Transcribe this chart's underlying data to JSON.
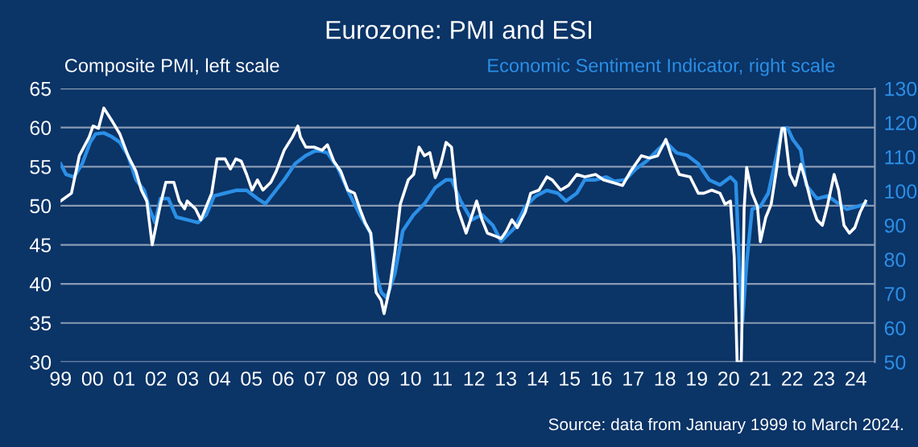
{
  "chart_data": {
    "type": "line",
    "title": "Eurozone: PMI and ESI",
    "ylabel": "Composite PMI, left scale",
    "y2label": "Economic Sentiment Indicator, right scale",
    "annotations": [
      "Source: data from January 1999 to March 2024."
    ],
    "xlim": [
      1999,
      2024.6
    ],
    "xticks": [
      {
        "value": 1999,
        "label": "99"
      },
      {
        "value": 2000,
        "label": "00"
      },
      {
        "value": 2001,
        "label": "01"
      },
      {
        "value": 2002,
        "label": "02"
      },
      {
        "value": 2003,
        "label": "03"
      },
      {
        "value": 2004,
        "label": "04"
      },
      {
        "value": 2005,
        "label": "05"
      },
      {
        "value": 2006,
        "label": "06"
      },
      {
        "value": 2007,
        "label": "07"
      },
      {
        "value": 2008,
        "label": "08"
      },
      {
        "value": 2009,
        "label": "09"
      },
      {
        "value": 2010,
        "label": "10"
      },
      {
        "value": 2011,
        "label": "11"
      },
      {
        "value": 2012,
        "label": "12"
      },
      {
        "value": 2013,
        "label": "13"
      },
      {
        "value": 2014,
        "label": "14"
      },
      {
        "value": 2015,
        "label": "15"
      },
      {
        "value": 2016,
        "label": "16"
      },
      {
        "value": 2017,
        "label": "17"
      },
      {
        "value": 2018,
        "label": "18"
      },
      {
        "value": 2019,
        "label": "19"
      },
      {
        "value": 2020,
        "label": "20"
      },
      {
        "value": 2021,
        "label": "21"
      },
      {
        "value": 2022,
        "label": "22"
      },
      {
        "value": 2023,
        "label": "23"
      },
      {
        "value": 2024,
        "label": "24"
      }
    ],
    "ylim": [
      30,
      65
    ],
    "yticks": [
      30,
      35,
      40,
      45,
      50,
      55,
      60,
      65
    ],
    "y2lim": [
      50,
      130
    ],
    "y2ticks": [
      50,
      60,
      70,
      80,
      90,
      100,
      110,
      120,
      130
    ],
    "grid": "y",
    "legend": false,
    "series": [
      {
        "color": "#ffffff",
        "x": [
          1999.0,
          1999.34,
          1999.59,
          1999.9,
          2000.02,
          2000.19,
          2000.36,
          2000.61,
          2000.86,
          2001.12,
          2001.37,
          2001.54,
          2001.71,
          2001.88,
          2002.14,
          2002.31,
          2002.56,
          2002.73,
          2002.9,
          2002.98,
          2003.24,
          2003.41,
          2003.75,
          2003.92,
          2004.17,
          2004.34,
          2004.51,
          2004.68,
          2004.85,
          2005.02,
          2005.19,
          2005.36,
          2005.61,
          2005.78,
          2006.03,
          2006.29,
          2006.46,
          2006.54,
          2006.71,
          2006.97,
          2007.22,
          2007.39,
          2007.59,
          2007.81,
          2008.03,
          2008.24,
          2008.41,
          2008.58,
          2008.75,
          2008.92,
          2009.08,
          2009.17,
          2009.34,
          2009.51,
          2009.68,
          2009.93,
          2010.1,
          2010.27,
          2010.44,
          2010.61,
          2010.78,
          2010.95,
          2011.12,
          2011.29,
          2011.49,
          2011.75,
          2012.0,
          2012.08,
          2012.25,
          2012.42,
          2012.68,
          2012.85,
          2013.02,
          2013.19,
          2013.36,
          2013.61,
          2013.78,
          2014.04,
          2014.29,
          2014.46,
          2014.72,
          2014.97,
          2015.23,
          2015.48,
          2015.82,
          2016.07,
          2016.33,
          2016.67,
          2016.92,
          2017.26,
          2017.52,
          2017.77,
          2018.03,
          2018.2,
          2018.45,
          2018.79,
          2019.05,
          2019.22,
          2019.47,
          2019.73,
          2019.89,
          2020.06,
          2020.18,
          2020.27,
          2020.4,
          2020.49,
          2020.57,
          2020.74,
          2020.91,
          2021.0,
          2021.17,
          2021.34,
          2021.51,
          2021.68,
          2021.76,
          2021.93,
          2022.1,
          2022.27,
          2022.44,
          2022.61,
          2022.78,
          2022.95,
          2023.12,
          2023.32,
          2023.46,
          2023.63,
          2023.8,
          2023.97,
          2024.14,
          2024.31
        ],
        "values": [
          50.6,
          51.6,
          56.4,
          58.8,
          60.2,
          59.9,
          62.5,
          60.9,
          59.2,
          56.4,
          54.4,
          52,
          50.6,
          45.0,
          50.2,
          53,
          53,
          50.6,
          49.6,
          50.6,
          49.6,
          48.2,
          51.6,
          56,
          56,
          54.7,
          56,
          55.7,
          54,
          52,
          53.3,
          52,
          53,
          54.4,
          57.1,
          58.8,
          60.2,
          58.8,
          57.5,
          57.5,
          57.1,
          57.8,
          55.7,
          54.4,
          52,
          51.6,
          49.6,
          47.8,
          46.5,
          38.9,
          37.9,
          36.2,
          39.3,
          44.1,
          50.2,
          53.3,
          54,
          57.5,
          56.4,
          56.8,
          53.6,
          55.3,
          58.1,
          57.5,
          49.6,
          46.5,
          49.6,
          50.6,
          48.2,
          46.5,
          46.1,
          45.8,
          46.8,
          48.2,
          47.2,
          49.2,
          51.6,
          52.0,
          53.7,
          53.3,
          52.0,
          52.6,
          54.0,
          53.7,
          54.0,
          53.3,
          53.0,
          52.6,
          54.4,
          56.4,
          56.1,
          56.4,
          58.5,
          56.4,
          54.0,
          53.7,
          51.6,
          51.6,
          52.0,
          51.6,
          50.2,
          50.6,
          43.4,
          30,
          30,
          49.6,
          54.9,
          51.6,
          49.9,
          45.4,
          48.5,
          50.2,
          54.7,
          59.9,
          59.9,
          54.0,
          52.6,
          55.3,
          53.0,
          50.2,
          48.2,
          47.5,
          50.2,
          54.0,
          52.0,
          47.5,
          46.5,
          47.2,
          49.2,
          50.6
        ]
      },
      {
        "color": "#2b8fe6",
        "axis": "y2",
        "x": [
          1999.0,
          1999.17,
          1999.42,
          1999.68,
          1999.93,
          2000.1,
          2000.36,
          2000.61,
          2000.86,
          2001.12,
          2001.37,
          2001.63,
          2001.8,
          2001.97,
          2002.14,
          2002.39,
          2002.64,
          2002.98,
          2003.32,
          2003.58,
          2003.83,
          2004.17,
          2004.51,
          2004.85,
          2005.19,
          2005.44,
          2005.7,
          2006.03,
          2006.37,
          2006.71,
          2007.05,
          2007.39,
          2007.73,
          2008.07,
          2008.41,
          2008.75,
          2008.92,
          2009.08,
          2009.25,
          2009.51,
          2009.76,
          2010.1,
          2010.44,
          2010.78,
          2011.12,
          2011.29,
          2011.58,
          2011.92,
          2012.25,
          2012.59,
          2012.85,
          2013.27,
          2013.61,
          2013.95,
          2014.29,
          2014.63,
          2014.89,
          2015.23,
          2015.48,
          2015.82,
          2016.16,
          2016.41,
          2016.75,
          2017.09,
          2017.43,
          2017.77,
          2018.03,
          2018.37,
          2018.71,
          2019.05,
          2019.39,
          2019.73,
          2020.06,
          2020.23,
          2020.35,
          2020.44,
          2020.57,
          2020.74,
          2021.0,
          2021.25,
          2021.51,
          2021.68,
          2021.85,
          2022.02,
          2022.27,
          2022.44,
          2022.78,
          2023.12,
          2023.46,
          2023.71,
          2024.05,
          2024.31
        ],
        "values": [
          108.0,
          104.9,
          104.1,
          108.0,
          114.3,
          116.7,
          117.0,
          115.9,
          114.3,
          110.4,
          103.3,
          100.2,
          94.7,
          90.8,
          97.8,
          97.8,
          92.4,
          91.6,
          90.8,
          93.1,
          98.6,
          99.4,
          100.2,
          100.2,
          97.8,
          96.3,
          99.4,
          103.3,
          108.0,
          110.4,
          112.0,
          111.2,
          106.5,
          99.4,
          93.1,
          87.6,
          75.9,
          70.4,
          68.8,
          75.9,
          88.4,
          93.1,
          96.3,
          101.0,
          103.3,
          103.3,
          97.1,
          91.6,
          93.1,
          90.0,
          85.3,
          89.2,
          95.5,
          98.6,
          100.2,
          99.4,
          97.1,
          99.4,
          103.3,
          103.3,
          104.1,
          102.9,
          103.3,
          106.5,
          108.8,
          112.0,
          114.3,
          111.2,
          110.4,
          108.0,
          103.3,
          101.8,
          104.1,
          102.5,
          75.9,
          61.8,
          79.0,
          94.7,
          95.5,
          99.4,
          110.4,
          118.2,
          118.5,
          115.1,
          112.0,
          101.8,
          97.8,
          98.6,
          96.3,
          94.7,
          95.5,
          96.3
        ]
      }
    ]
  }
}
